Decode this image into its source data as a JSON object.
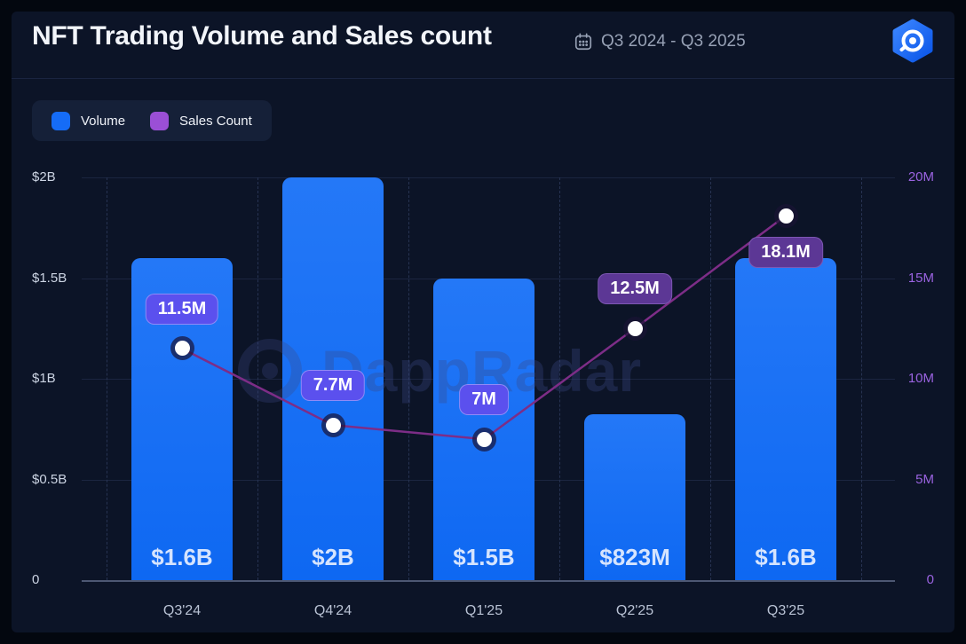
{
  "header": {
    "title": "NFT Trading Volume and Sales count",
    "date_range": "Q3 2024 - Q3 2025"
  },
  "legend": {
    "items": [
      {
        "label": "Volume",
        "color": "#156cf7"
      },
      {
        "label": "Sales Count",
        "color": "#9b4fd6"
      }
    ]
  },
  "watermark": "DappRadar",
  "chart_data": {
    "type": "bar+line combo",
    "title": "NFT Trading Volume and Sales count",
    "categories": [
      "Q3'24",
      "Q4'24",
      "Q1'25",
      "Q2'25",
      "Q3'25"
    ],
    "series": [
      {
        "name": "Volume",
        "type": "bar",
        "axis": "left",
        "unit": "USD billions",
        "values_billions": [
          1.6,
          2.0,
          1.5,
          0.823,
          1.6
        ],
        "data_labels": [
          "$1.6B",
          "$2B",
          "$1.5B",
          "$823M",
          "$1.6B"
        ],
        "color": "#0e68f2",
        "color_top": "#2478f7"
      },
      {
        "name": "Sales Count",
        "type": "line",
        "axis": "right",
        "unit": "sales millions",
        "values_millions": [
          11.5,
          7.7,
          7.0,
          12.5,
          18.1
        ],
        "data_labels": [
          "11.5M",
          "7.7M",
          "7M",
          "12.5M",
          "18.1M"
        ],
        "line_color": "#7d2d87",
        "point_color": "#ffffff",
        "badge_styles": [
          "violet",
          "violet",
          "violet",
          "purple",
          "purple"
        ],
        "badge_colors": {
          "violet": "#5b50ee",
          "purple": "#5c3795"
        }
      }
    ],
    "left_axis": {
      "ticks": [
        "$2B",
        "$1.5B",
        "$1B",
        "$0.5B",
        "0"
      ],
      "range": [
        0,
        2
      ],
      "unit": "B USD",
      "color": "#ccd4e3"
    },
    "right_axis": {
      "ticks": [
        "20M",
        "15M",
        "10M",
        "5M",
        "0"
      ],
      "range": [
        0,
        20
      ],
      "unit": "M sales",
      "color": "#9a63e0"
    },
    "grid": {
      "horizontal": "solid",
      "vertical": "dashed"
    },
    "legend_position": "top-left"
  }
}
